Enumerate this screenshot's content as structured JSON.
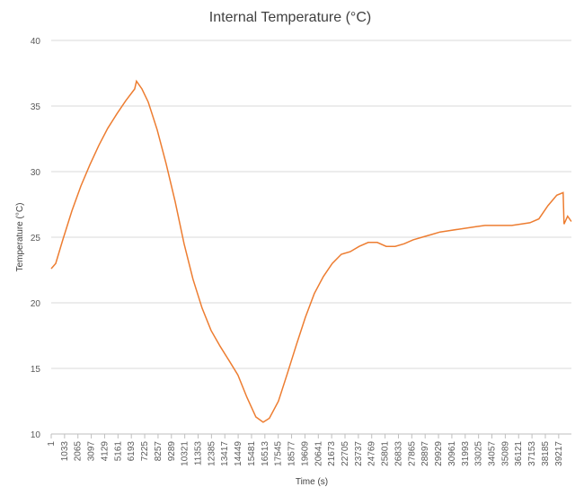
{
  "chart_data": {
    "type": "line",
    "title": "Internal Temperature (°C)",
    "x_label": "Time (s)",
    "y_label": "Temperature (°C)",
    "x": [
      1,
      350,
      900,
      1600,
      2290,
      2980,
      3680,
      4370,
      5070,
      5760,
      6450,
      6590,
      7010,
      7500,
      8190,
      8880,
      9580,
      10270,
      10960,
      11660,
      12350,
      13050,
      13740,
      14430,
      15120,
      15820,
      16380,
      16860,
      17560,
      18250,
      18950,
      19640,
      20330,
      21030,
      21720,
      22420,
      23110,
      23800,
      24500,
      25190,
      25890,
      26580,
      27270,
      27970,
      28660,
      29360,
      30050,
      30740,
      31440,
      32130,
      32830,
      33520,
      34210,
      34910,
      35600,
      36300,
      36990,
      37690,
      38380,
      39070,
      39560,
      39630,
      39910,
      40190
    ],
    "series": [
      {
        "name": "Internal Temperature",
        "color": "#ed7d31",
        "values": [
          22.6,
          23,
          24.8,
          27,
          28.9,
          30.5,
          32,
          33.3,
          34.4,
          35.4,
          36.3,
          36.9,
          36.3,
          35.3,
          33.2,
          30.6,
          27.7,
          24.5,
          21.8,
          19.6,
          17.9,
          16.7,
          15.6,
          14.5,
          12.8,
          11.3,
          10.9,
          11.2,
          12.5,
          14.6,
          16.8,
          18.9,
          20.7,
          22.0,
          23.0,
          23.7,
          23.9,
          24.3,
          24.6,
          24.6,
          24.3,
          24.3,
          24.5,
          24.8,
          25.0,
          25.2,
          25.4,
          25.5,
          25.6,
          25.7,
          25.8,
          25.9,
          25.9,
          25.9,
          25.9,
          26.0,
          26.1,
          26.4,
          27.4,
          28.2,
          28.4,
          26.0,
          26.6,
          26.2
        ]
      }
    ],
    "xlim": [
      1,
      40200
    ],
    "xticks": [
      1,
      1033,
      2065,
      3097,
      4129,
      5161,
      6193,
      7225,
      8257,
      9289,
      10321,
      11353,
      12385,
      13417,
      14449,
      15481,
      16513,
      17545,
      18577,
      19609,
      20641,
      21673,
      22705,
      23737,
      24769,
      25801,
      26833,
      27865,
      28897,
      29929,
      30961,
      31993,
      33025,
      34057,
      35089,
      36121,
      37153,
      38185,
      39217
    ],
    "ylim": [
      10,
      40
    ],
    "yticks": [
      10,
      15,
      20,
      25,
      30,
      35,
      40
    ],
    "grid": true
  }
}
